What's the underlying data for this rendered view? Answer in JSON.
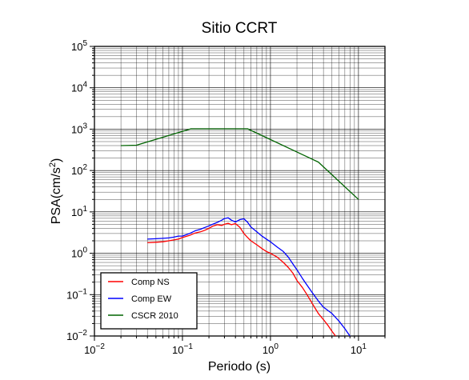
{
  "chart_data": {
    "type": "line",
    "title": "Sitio CCRT",
    "xlabel": "Periodo (s)",
    "ylabel": "PSA(cm/s2)",
    "xscale": "log",
    "yscale": "log",
    "xlim": [
      0.01,
      20
    ],
    "ylim": [
      0.01,
      100000
    ],
    "grid": true,
    "legend_position": "bottom-left",
    "x_tick_labels": [
      "10-2",
      "10-1",
      "100",
      "101"
    ],
    "y_tick_labels": [
      "10-2",
      "10-1",
      "100",
      "101",
      "102",
      "103",
      "104",
      "105"
    ],
    "series": [
      {
        "name": "Comp NS",
        "color": "#ff0000",
        "points": [
          [
            0.04,
            1.8
          ],
          [
            0.05,
            1.85
          ],
          [
            0.06,
            1.9
          ],
          [
            0.07,
            2.0
          ],
          [
            0.08,
            2.1
          ],
          [
            0.09,
            2.2
          ],
          [
            0.1,
            2.4
          ],
          [
            0.12,
            2.7
          ],
          [
            0.14,
            3.1
          ],
          [
            0.16,
            3.3
          ],
          [
            0.18,
            3.6
          ],
          [
            0.2,
            4.0
          ],
          [
            0.22,
            4.5
          ],
          [
            0.25,
            4.9
          ],
          [
            0.28,
            4.7
          ],
          [
            0.3,
            5.0
          ],
          [
            0.33,
            5.3
          ],
          [
            0.36,
            4.9
          ],
          [
            0.4,
            5.2
          ],
          [
            0.45,
            4.2
          ],
          [
            0.5,
            3.0
          ],
          [
            0.55,
            2.4
          ],
          [
            0.6,
            2.0
          ],
          [
            0.7,
            1.6
          ],
          [
            0.8,
            1.3
          ],
          [
            0.9,
            1.1
          ],
          [
            1.0,
            1.0
          ],
          [
            1.2,
            0.8
          ],
          [
            1.4,
            0.6
          ],
          [
            1.6,
            0.45
          ],
          [
            1.8,
            0.33
          ],
          [
            2.0,
            0.22
          ],
          [
            2.3,
            0.15
          ],
          [
            2.6,
            0.1
          ],
          [
            3.0,
            0.06
          ],
          [
            3.5,
            0.035
          ],
          [
            4.0,
            0.025
          ],
          [
            4.5,
            0.018
          ],
          [
            5.0,
            0.013
          ],
          [
            5.5,
            0.01
          ]
        ]
      },
      {
        "name": "Comp EW",
        "color": "#0000ff",
        "points": [
          [
            0.04,
            2.2
          ],
          [
            0.05,
            2.25
          ],
          [
            0.06,
            2.3
          ],
          [
            0.07,
            2.35
          ],
          [
            0.08,
            2.45
          ],
          [
            0.09,
            2.6
          ],
          [
            0.1,
            2.6
          ],
          [
            0.12,
            3.0
          ],
          [
            0.14,
            3.5
          ],
          [
            0.16,
            3.8
          ],
          [
            0.18,
            4.2
          ],
          [
            0.2,
            4.6
          ],
          [
            0.22,
            5.0
          ],
          [
            0.25,
            5.6
          ],
          [
            0.28,
            6.3
          ],
          [
            0.3,
            6.9
          ],
          [
            0.33,
            7.2
          ],
          [
            0.36,
            6.3
          ],
          [
            0.4,
            5.7
          ],
          [
            0.45,
            6.5
          ],
          [
            0.5,
            6.8
          ],
          [
            0.55,
            5.6
          ],
          [
            0.6,
            4.3
          ],
          [
            0.7,
            3.3
          ],
          [
            0.8,
            2.6
          ],
          [
            0.9,
            2.2
          ],
          [
            1.0,
            1.9
          ],
          [
            1.2,
            1.4
          ],
          [
            1.4,
            1.1
          ],
          [
            1.6,
            0.8
          ],
          [
            1.8,
            0.55
          ],
          [
            2.0,
            0.4
          ],
          [
            2.3,
            0.25
          ],
          [
            2.6,
            0.17
          ],
          [
            3.0,
            0.11
          ],
          [
            3.5,
            0.07
          ],
          [
            4.0,
            0.05
          ],
          [
            5.0,
            0.035
          ],
          [
            6.0,
            0.023
          ],
          [
            7.0,
            0.015
          ],
          [
            8.0,
            0.01
          ]
        ]
      },
      {
        "name": "CSCR 2010",
        "color": "#006400",
        "points": [
          [
            0.02,
            400
          ],
          [
            0.03,
            410
          ],
          [
            0.125,
            1020
          ],
          [
            0.55,
            1020
          ],
          [
            3.5,
            160
          ],
          [
            10,
            20
          ]
        ]
      }
    ]
  }
}
